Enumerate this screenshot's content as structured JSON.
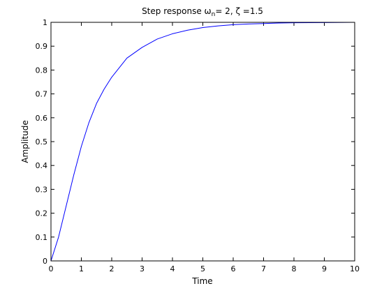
{
  "chart_data": {
    "type": "line",
    "title": {
      "prefix": "Step response ",
      "omega_symbol": "ω",
      "omega_subscript": "n",
      "middle": "= 2, ",
      "zeta_symbol": "ζ",
      "suffix": " =1.5"
    },
    "xlabel": "Time",
    "ylabel": "Amplitude",
    "xlim": [
      0,
      10
    ],
    "ylim": [
      0,
      1
    ],
    "xticks": [
      0,
      1,
      2,
      3,
      4,
      5,
      6,
      7,
      8,
      9,
      10
    ],
    "yticks": [
      0,
      0.1,
      0.2,
      0.3,
      0.4,
      0.5,
      0.6,
      0.7,
      0.8,
      0.9,
      1
    ],
    "xtick_labels": [
      "0",
      "1",
      "2",
      "3",
      "4",
      "5",
      "6",
      "7",
      "8",
      "9",
      "10"
    ],
    "ytick_labels": [
      "0",
      "0.1",
      "0.2",
      "0.3",
      "0.4",
      "0.5",
      "0.6",
      "0.7",
      "0.8",
      "0.9",
      "1"
    ],
    "grid": false,
    "series": [
      {
        "color": "#0000ff",
        "x": [
          0,
          0.25,
          0.5,
          0.75,
          1,
          1.25,
          1.5,
          1.75,
          2,
          2.5,
          3,
          3.5,
          4,
          4.5,
          5,
          5.5,
          6,
          6.5,
          7,
          7.5,
          8,
          9,
          10
        ],
        "y": [
          0,
          0.1,
          0.23,
          0.36,
          0.48,
          0.58,
          0.66,
          0.72,
          0.77,
          0.85,
          0.895,
          0.93,
          0.952,
          0.967,
          0.978,
          0.985,
          0.99,
          0.993,
          0.995,
          0.997,
          0.998,
          0.999,
          1.0
        ]
      }
    ]
  }
}
